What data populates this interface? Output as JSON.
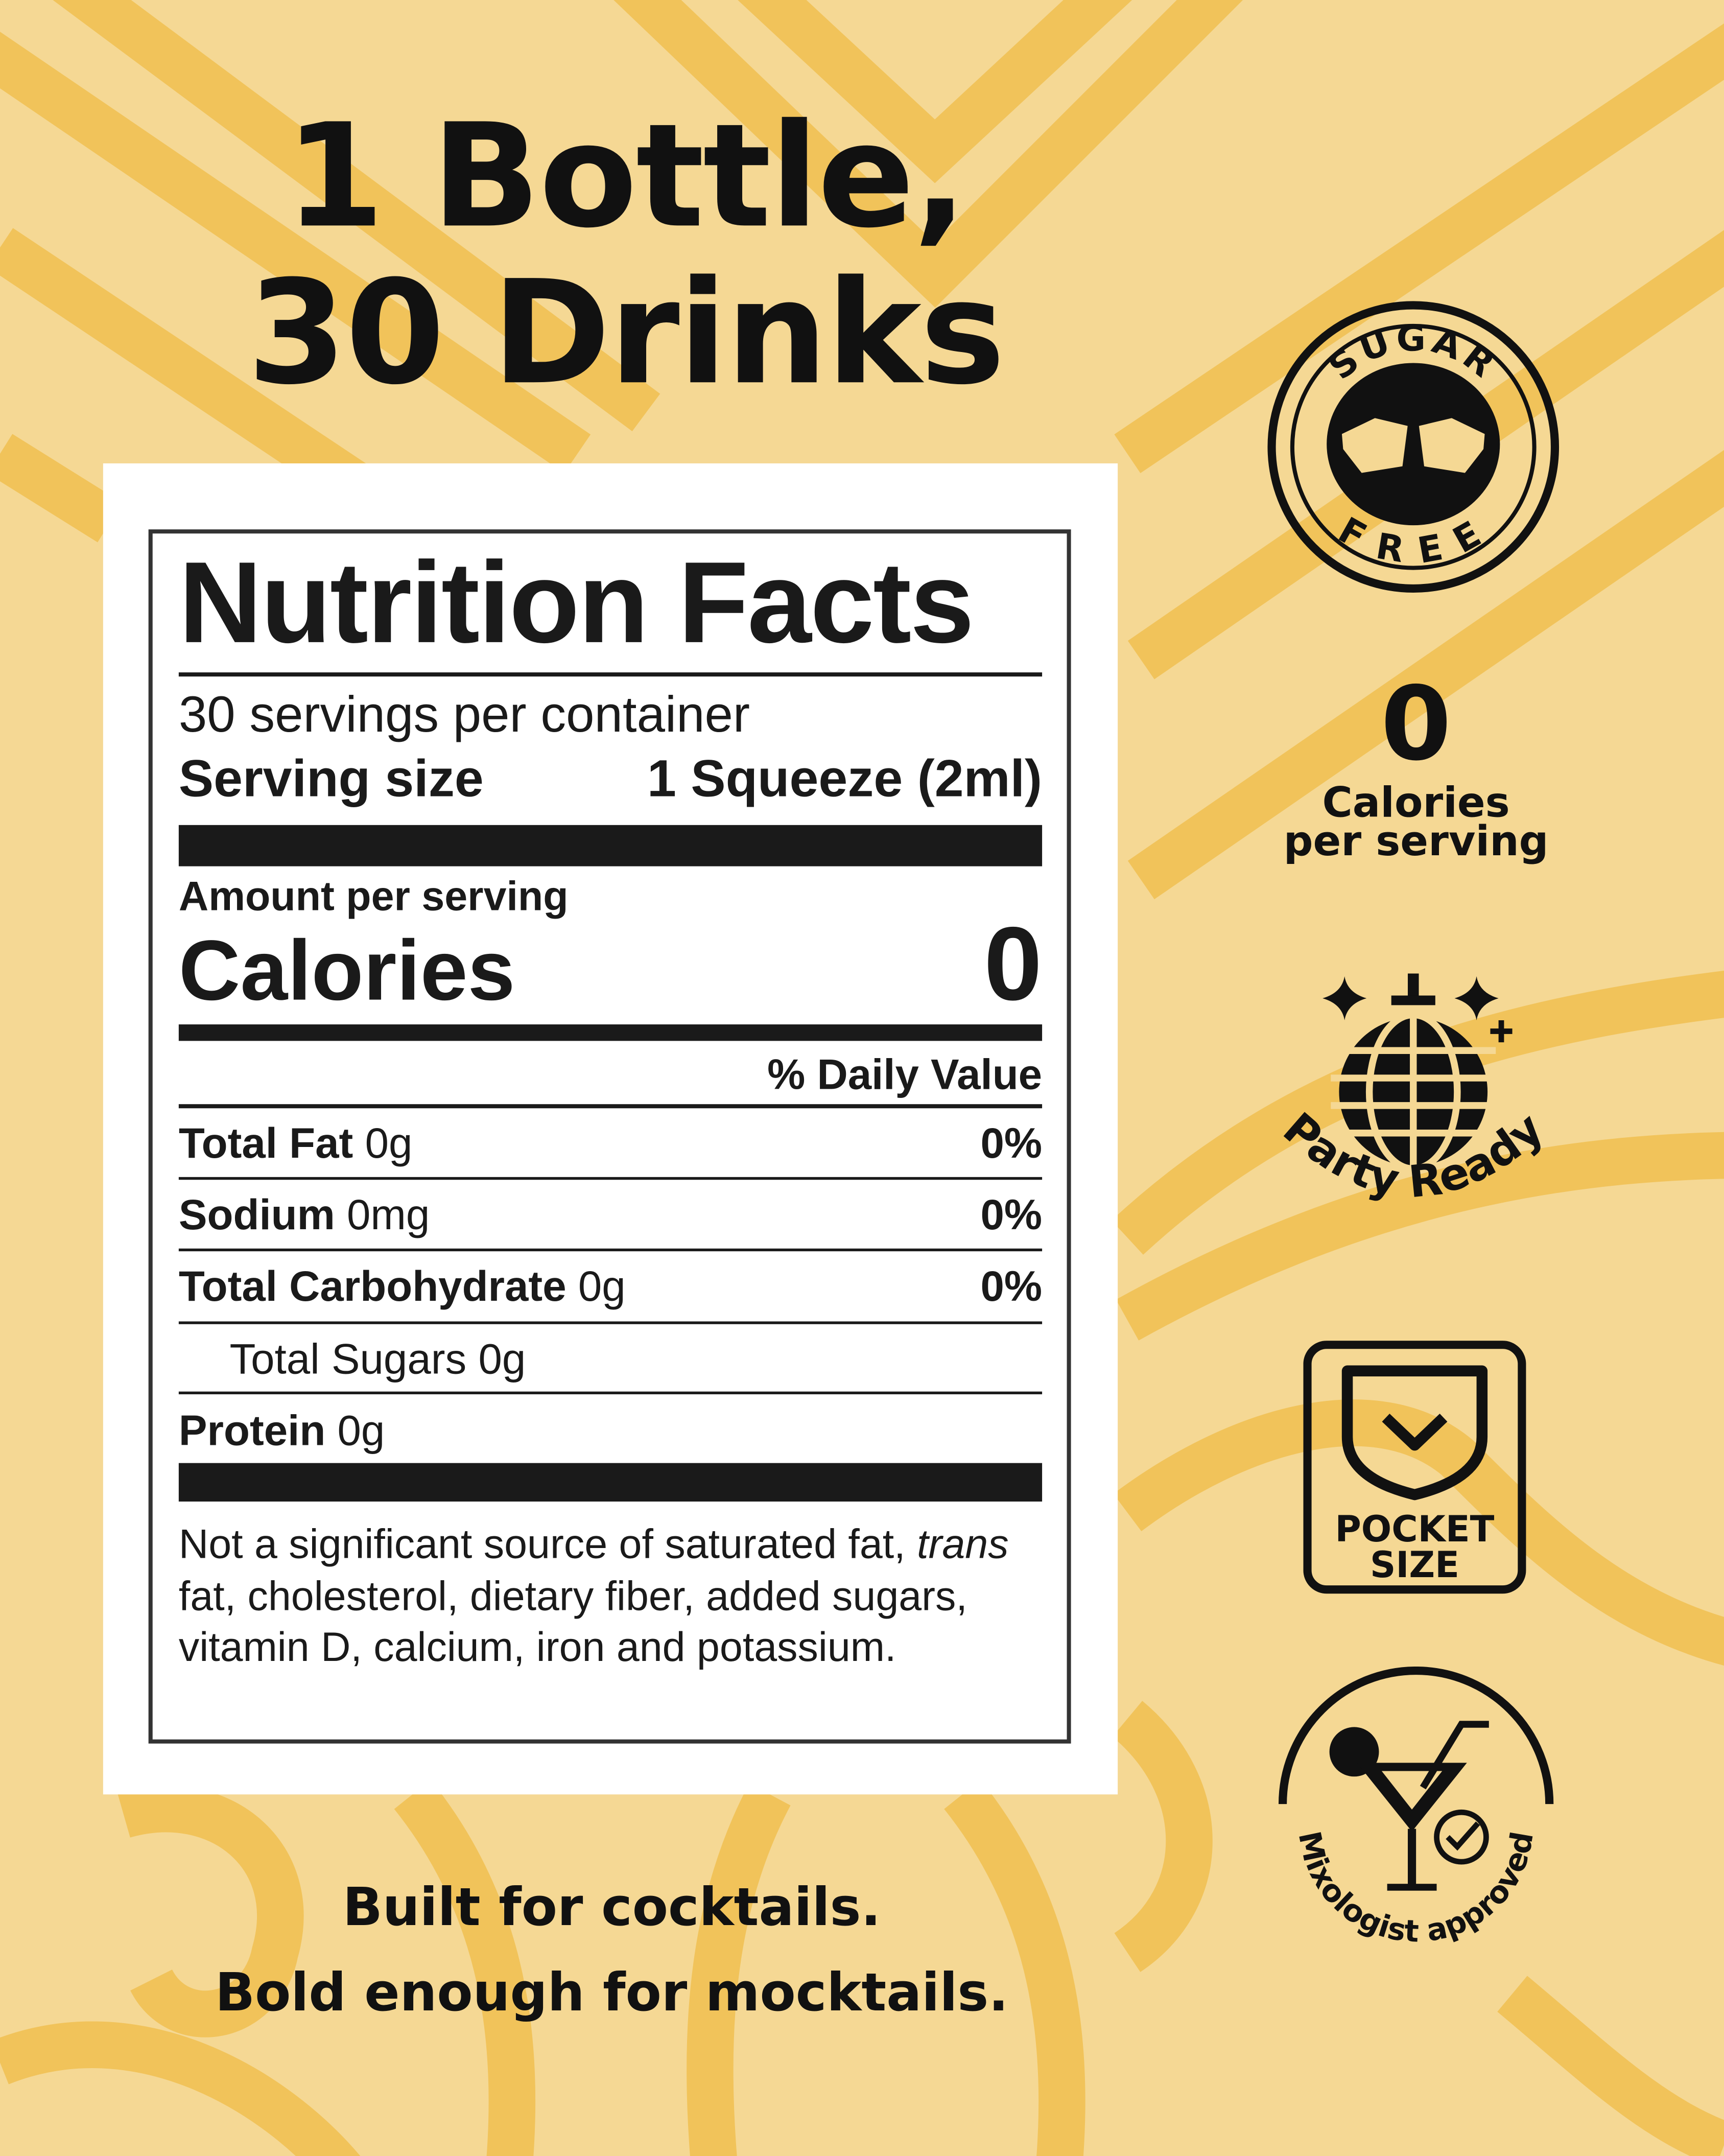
{
  "headline": {
    "line1": "1 Bottle,",
    "line2": "30 Drinks"
  },
  "nutrition": {
    "title": "Nutrition Facts",
    "servings_per_container": "30 servings per container",
    "serving_size_label": "Serving size",
    "serving_size_value": "1 Squeeze (2ml)",
    "amount_per_serving": "Amount per serving",
    "calories_label": "Calories",
    "calories_value": "0",
    "daily_value_header": "% Daily Value",
    "rows": [
      {
        "label": "Total Fat",
        "amount": "0g",
        "dv": "0%"
      },
      {
        "label": "Sodium",
        "amount": "0mg",
        "dv": "0%"
      },
      {
        "label": "Total Carbohydrate",
        "amount": "0g",
        "dv": "0%"
      },
      {
        "label": "Total Sugars",
        "amount": "0g",
        "dv": ""
      },
      {
        "label": "Protein",
        "amount": "0g",
        "dv": ""
      }
    ],
    "footnote_italic": "trans",
    "footnote_part1": "Not a significant source of saturated fat,",
    "footnote_part2": "fat, cholesterol, dietary fiber, added sugars, vitamin D, calcium, iron and potassium."
  },
  "badges": {
    "sugar_free_top": "SUGAR",
    "sugar_free_bottom": "FREE",
    "calories_number": "0",
    "calories_line1": "Calories",
    "calories_line2": "per serving",
    "party_ready": "Party Ready",
    "pocket_line1": "POCKET",
    "pocket_line2": "SIZE",
    "mixologist": "Mixologist approved"
  },
  "tagline": {
    "line1": "Built for cocktails.",
    "line2": "Bold enough for mocktails."
  },
  "colors": {
    "background": "#f5d894",
    "pattern": "#f1c35a",
    "ink": "#111111",
    "panel": "#ffffff"
  }
}
